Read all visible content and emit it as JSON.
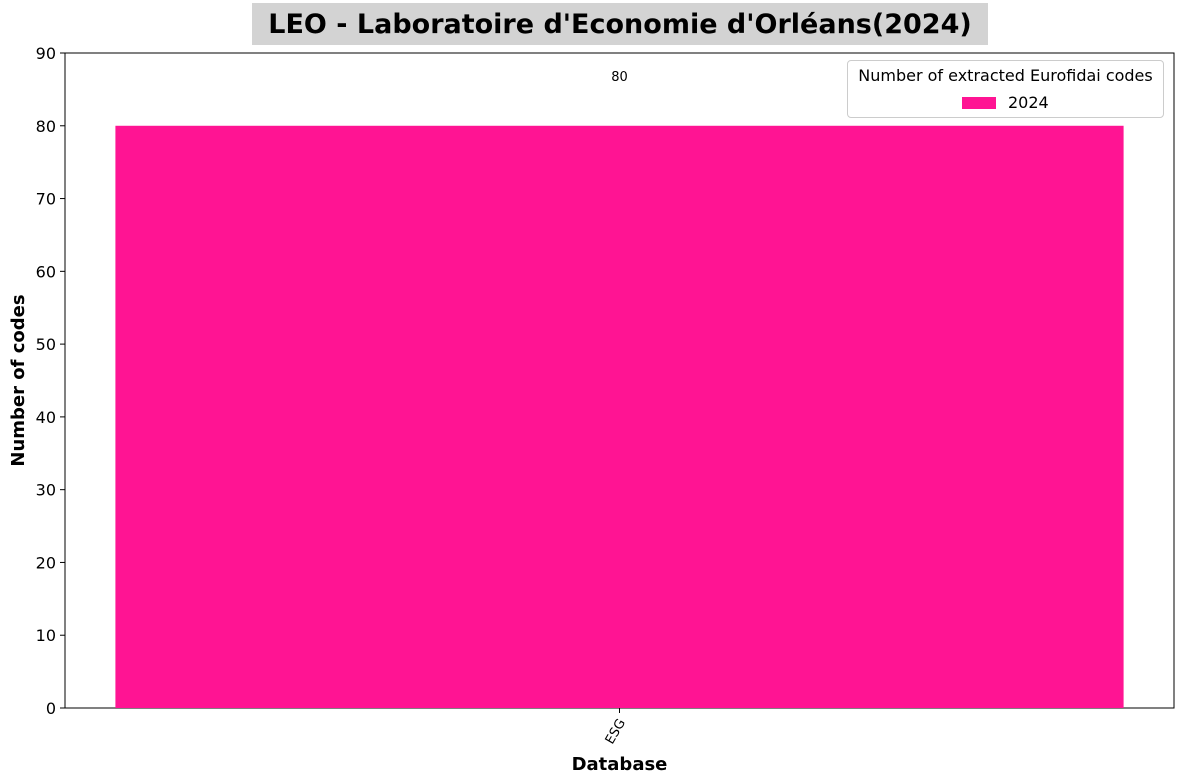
{
  "colors": {
    "bar": "#ff1493",
    "title_background": "#d3d3d3"
  },
  "chart_data": {
    "type": "bar",
    "title": "LEO - Laboratoire d'Economie d'Orléans(2024)",
    "xlabel": "Database",
    "ylabel": "Number of codes",
    "categories": [
      "ESG"
    ],
    "series": [
      {
        "name": "2024",
        "values": [
          80
        ]
      }
    ],
    "data_labels": [
      "80"
    ],
    "ylim": [
      0,
      90
    ],
    "yticks": [
      0,
      10,
      20,
      30,
      40,
      50,
      60,
      70,
      80,
      90
    ],
    "legend": {
      "title": "Number of extracted Eurofidai codes",
      "position": "top-right"
    },
    "grid": false
  }
}
